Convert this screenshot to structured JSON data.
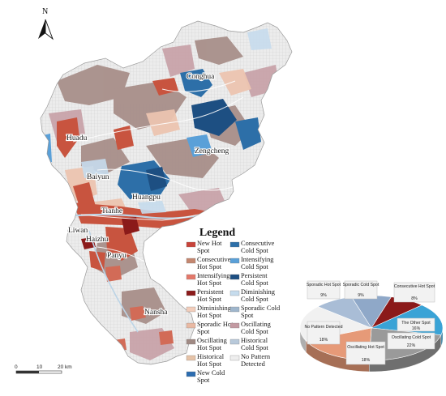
{
  "north_arrow": {
    "label": "N"
  },
  "districts": [
    {
      "id": "conghua",
      "label": "Conghua"
    },
    {
      "id": "huadu",
      "label": "Huadu"
    },
    {
      "id": "zengcheng",
      "label": "Zengcheng"
    },
    {
      "id": "baiyun",
      "label": "Baiyun"
    },
    {
      "id": "huangpu",
      "label": "Huangpu"
    },
    {
      "id": "tianhe",
      "label": "Tianhe"
    },
    {
      "id": "liwan",
      "label": "Liwan"
    },
    {
      "id": "haizhu",
      "label": "Haizhu"
    },
    {
      "id": "panyu",
      "label": "Panyu"
    },
    {
      "id": "nansha",
      "label": "Nansha"
    }
  ],
  "legend": {
    "title": "Legend",
    "items": [
      {
        "label": "New Hot Spot",
        "color": "#c8433a"
      },
      {
        "label": "Consecutive Hot Spot",
        "color": "#c48770"
      },
      {
        "label": "Intensifying Hot Spot",
        "color": "#e4786a"
      },
      {
        "label": "Persistent Hot Spot",
        "color": "#8b1a1a"
      },
      {
        "label": "Diminishing Hot Spot",
        "color": "#f2cdbb"
      },
      {
        "label": "Sporadic Hot Spot",
        "color": "#e9b9a3"
      },
      {
        "label": "Oscillating Hot Spot",
        "color": "#a08a84"
      },
      {
        "label": "Historical Hot Spot",
        "color": "#e6c3a8"
      },
      {
        "label": "New Cold Spot",
        "color": "#2b6cb0"
      },
      {
        "label": "Consecutive Cold Spot",
        "color": "#2d6fa8"
      },
      {
        "label": "Intensifying Cold Spot",
        "color": "#5aa0d8"
      },
      {
        "label": "Persistent Cold Spot",
        "color": "#1d4f82"
      },
      {
        "label": "Diminishing Cold Spot",
        "color": "#c6dced"
      },
      {
        "label": "Sporadic Cold Spot",
        "color": "#9fb6cc"
      },
      {
        "label": "Oscillating Cold Spot",
        "color": "#c39aa2"
      },
      {
        "label": "Historical Cold Spot",
        "color": "#b8c9da"
      },
      {
        "label": "No Pattern Detected",
        "color": "#eeeeee"
      }
    ]
  },
  "scale_bar": {
    "ticks": [
      "0",
      "10",
      "20 km"
    ]
  },
  "pie_chart": {
    "slices": [
      {
        "name": "Sporadic Cold Spot",
        "value": 9,
        "color": "#8fa8c8"
      },
      {
        "name": "Consecutive Hot Spot",
        "value": 8,
        "color": "#8b1a1a"
      },
      {
        "name": "The Other Spot",
        "value": 16,
        "color": "#3aa3d6"
      },
      {
        "name": "Oscillating Cold Spot",
        "value": 22,
        "color": "#9a9a9a"
      },
      {
        "name": "Oscillating Hot Spot",
        "value": 18,
        "color": "#e69a78"
      },
      {
        "name": "No Pattern Detected",
        "value": 18,
        "color": "#f1f1f1"
      },
      {
        "name": "Sporadic Hot Spot",
        "value": 9,
        "color": "#a9bdd6"
      }
    ],
    "labels": {
      "sporadic_cold": {
        "name": "Sporadic Cold Spot",
        "pct": "9%"
      },
      "consecutive_hot": {
        "name": "Consecutive Hot Spot",
        "pct": "8%"
      },
      "other": {
        "name": "The Other Spot",
        "pct": "16%"
      },
      "oscillating_cold": {
        "name": "Oscillating Cold Spot",
        "pct": "22%"
      },
      "oscillating_hot": {
        "name": "Oscillating Hot Spot",
        "pct": "18%"
      },
      "no_pattern": {
        "name": "No Pattern Detected",
        "pct": "18%"
      },
      "sporadic_hot": {
        "name": "Sporadic Hot Spot",
        "pct": "9%"
      }
    }
  }
}
